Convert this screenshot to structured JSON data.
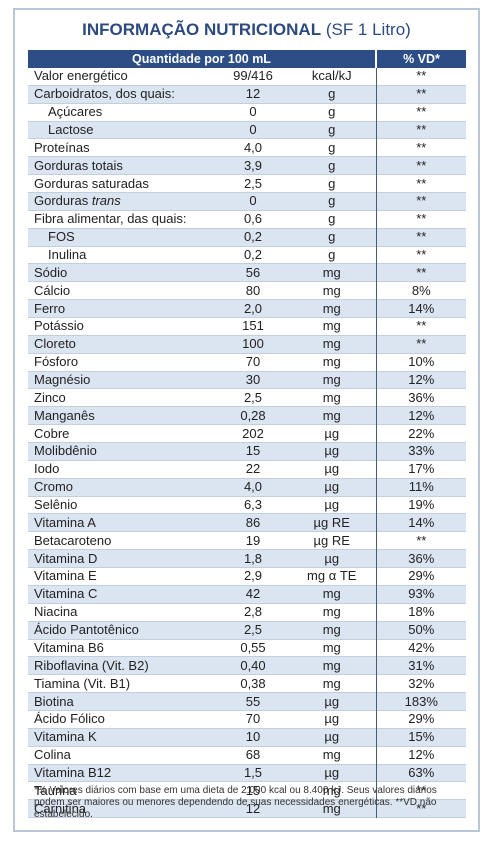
{
  "header": {
    "title": "INFORMAÇÃO NUTRICIONAL",
    "subtitle": "(SF 1 Litro)"
  },
  "table": {
    "columns": [
      "Quantidade por 100 mL",
      "% VD*"
    ],
    "rows": [
      {
        "name": "Valor energético",
        "value": "99/416",
        "unit": "kcal/kJ",
        "vd": "**"
      },
      {
        "name": "Carboidratos, dos quais:",
        "value": "12",
        "unit": "g",
        "vd": "**"
      },
      {
        "name": "Açúcares",
        "value": "0",
        "unit": "g",
        "vd": "**",
        "indent": true
      },
      {
        "name": "Lactose",
        "value": "0",
        "unit": "g",
        "vd": "**",
        "indent": true
      },
      {
        "name": "Proteínas",
        "value": "4,0",
        "unit": "g",
        "vd": "**"
      },
      {
        "name": "Gorduras totais",
        "value": "3,9",
        "unit": "g",
        "vd": "**"
      },
      {
        "name": "Gorduras saturadas",
        "value": "2,5",
        "unit": "g",
        "vd": "**"
      },
      {
        "name": "Gorduras",
        "name_italic": "trans",
        "value": "0",
        "unit": "g",
        "vd": "**"
      },
      {
        "name": "Fibra alimentar, das quais:",
        "value": "0,6",
        "unit": "g",
        "vd": "**"
      },
      {
        "name": "FOS",
        "value": "0,2",
        "unit": "g",
        "vd": "**",
        "indent": true
      },
      {
        "name": "Inulina",
        "value": "0,2",
        "unit": "g",
        "vd": "**",
        "indent": true
      },
      {
        "name": "Sódio",
        "value": "56",
        "unit": "mg",
        "vd": "**"
      },
      {
        "name": "Cálcio",
        "value": "80",
        "unit": "mg",
        "vd": "8%"
      },
      {
        "name": "Ferro",
        "value": "2,0",
        "unit": "mg",
        "vd": "14%"
      },
      {
        "name": "Potássio",
        "value": "151",
        "unit": "mg",
        "vd": "**"
      },
      {
        "name": "Cloreto",
        "value": "100",
        "unit": "mg",
        "vd": "**"
      },
      {
        "name": "Fósforo",
        "value": "70",
        "unit": "mg",
        "vd": "10%"
      },
      {
        "name": "Magnésio",
        "value": "30",
        "unit": "mg",
        "vd": "12%"
      },
      {
        "name": "Zinco",
        "value": "2,5",
        "unit": "mg",
        "vd": "36%"
      },
      {
        "name": "Manganês",
        "value": "0,28",
        "unit": "mg",
        "vd": "12%"
      },
      {
        "name": "Cobre",
        "value": "202",
        "unit": "µg",
        "vd": "22%"
      },
      {
        "name": "Molibdênio",
        "value": "15",
        "unit": "µg",
        "vd": "33%"
      },
      {
        "name": "Iodo",
        "value": "22",
        "unit": "µg",
        "vd": "17%"
      },
      {
        "name": "Cromo",
        "value": "4,0",
        "unit": "µg",
        "vd": "11%"
      },
      {
        "name": "Selênio",
        "value": "6,3",
        "unit": "µg",
        "vd": "19%"
      },
      {
        "name": "Vitamina A",
        "value": "86",
        "unit": "µg RE",
        "vd": "14%"
      },
      {
        "name": "Betacaroteno",
        "value": "19",
        "unit": "µg RE",
        "vd": "**"
      },
      {
        "name": "Vitamina D",
        "value": "1,8",
        "unit": "µg",
        "vd": "36%"
      },
      {
        "name": "Vitamina E",
        "value": "2,9",
        "unit": "mg α TE",
        "vd": "29%"
      },
      {
        "name": "Vitamina C",
        "value": "42",
        "unit": "mg",
        "vd": "93%"
      },
      {
        "name": "Niacina",
        "value": "2,8",
        "unit": "mg",
        "vd": "18%"
      },
      {
        "name": "Ácido Pantotênico",
        "value": "2,5",
        "unit": "mg",
        "vd": "50%"
      },
      {
        "name": "Vitamina B6",
        "value": "0,55",
        "unit": "mg",
        "vd": "42%"
      },
      {
        "name": "Riboflavina (Vit. B2)",
        "value": "0,40",
        "unit": "mg",
        "vd": "31%"
      },
      {
        "name": "Tiamina (Vit. B1)",
        "value": "0,38",
        "unit": "mg",
        "vd": "32%"
      },
      {
        "name": "Biotina",
        "value": "55",
        "unit": "µg",
        "vd": "183%"
      },
      {
        "name": "Ácido Fólico",
        "value": "70",
        "unit": "µg",
        "vd": "29%"
      },
      {
        "name": "Vitamina K",
        "value": "10",
        "unit": "µg",
        "vd": "15%"
      },
      {
        "name": "Colina",
        "value": "68",
        "unit": "mg",
        "vd": "12%"
      },
      {
        "name": "Vitamina B12",
        "value": "1,5",
        "unit": "µg",
        "vd": "63%"
      },
      {
        "name": "Taurina",
        "value": "15",
        "unit": "mg",
        "vd": "**"
      },
      {
        "name": "Carnitina",
        "value": "12",
        "unit": "mg",
        "vd": "**"
      }
    ]
  },
  "footnote": "*% Valores diários com base em uma dieta de 2.000 kcal ou 8.400 kJ. Seus valores diários podem ser maiores ou menores dependendo de suas necessidades energéticas. **VD não estabelecido."
}
